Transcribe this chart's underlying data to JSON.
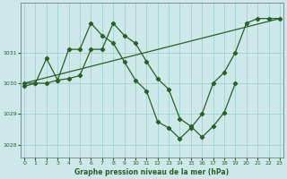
{
  "xlabel": "Graphe pression niveau de la mer (hPa)",
  "bg_color": "#cce8e8",
  "line_color": "#2a5f2a",
  "grid_color": "#99cccc",
  "ylim": [
    1027.6,
    1032.6
  ],
  "xlim": [
    -0.3,
    23.3
  ],
  "yticks": [
    1028,
    1029,
    1030,
    1031
  ],
  "xticks": [
    0,
    1,
    2,
    3,
    4,
    5,
    6,
    7,
    8,
    9,
    10,
    11,
    12,
    13,
    14,
    15,
    16,
    17,
    18,
    19,
    20,
    21,
    22,
    23
  ],
  "series1_x": [
    0,
    1,
    2,
    3,
    4,
    5,
    6,
    7,
    8,
    9,
    10,
    11,
    12,
    13,
    14,
    15,
    16,
    17,
    18,
    19,
    20,
    21,
    22,
    23
  ],
  "series1_y": [
    1030.0,
    1030.0,
    1030.8,
    1030.1,
    1031.1,
    1031.1,
    1031.95,
    1031.55,
    1031.3,
    1030.7,
    1030.1,
    1029.75,
    1028.75,
    1028.55,
    1028.2,
    1028.55,
    1029.0,
    1030.0,
    1030.35,
    1031.0,
    1031.95,
    1032.1,
    1032.1,
    1032.1
  ],
  "series2_x": [
    0,
    23
  ],
  "series2_y": [
    1030.0,
    1032.1
  ],
  "series3_x": [
    0,
    1,
    2,
    3,
    4,
    5,
    6,
    7,
    8,
    9,
    10,
    11,
    12,
    13,
    14,
    15,
    16,
    17,
    18,
    19
  ],
  "series3_y": [
    1029.9,
    1030.0,
    1030.0,
    1030.1,
    1030.15,
    1030.25,
    1031.1,
    1031.1,
    1031.95,
    1031.55,
    1031.3,
    1030.7,
    1030.15,
    1029.8,
    1028.85,
    1028.6,
    1028.25,
    1028.6,
    1029.05,
    1030.0
  ]
}
